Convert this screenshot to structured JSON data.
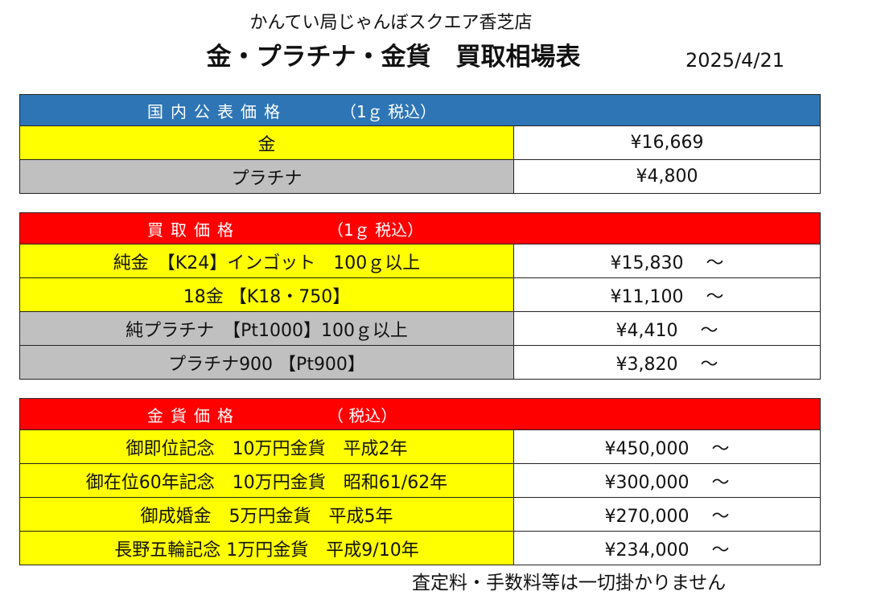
{
  "header": {
    "store_name": "かんてい局じゃんぼスクエア香芝店",
    "title": "金・プラチナ・金貨　買取相場表",
    "date": "2025/4/21"
  },
  "colors": {
    "section_blue": "#2e75b6",
    "section_red": "#ff0000",
    "gold_row": "#ffff00",
    "platinum_row": "#c0c0c0"
  },
  "public_price": {
    "label": "国内公表価格",
    "tax_note": "（1ｇ 税込）",
    "rows": [
      {
        "name": "金",
        "price": "¥16,669"
      },
      {
        "name": "プラチナ",
        "price": "¥4,800"
      }
    ]
  },
  "buy_price": {
    "label": "買取価格",
    "tax_note": "（1ｇ 税込）",
    "tilde": "～",
    "rows": [
      {
        "name": "純金　【K24】インゴット　100ｇ以上",
        "price": "¥15,830"
      },
      {
        "name": "18金 【K18・750】",
        "price": "¥11,100"
      },
      {
        "name": "純プラチナ　【Pt1000】100ｇ以上",
        "price": "¥4,410"
      },
      {
        "name": "プラチナ900 【Pt900】",
        "price": "¥3,820"
      }
    ]
  },
  "coin_price": {
    "label": "金貨価格",
    "tax_note": "（ 税込）",
    "tilde": "～",
    "rows": [
      {
        "name": "御即位記念　10万円金貨　平成2年",
        "price": "¥450,000"
      },
      {
        "name": "御在位60年記念　10万円金貨　昭和61/62年",
        "price": "¥300,000"
      },
      {
        "name": "御成婚金　5万円金貨　平成5年",
        "price": "¥270,000"
      },
      {
        "name": "長野五輪記念 1万円金貨　平成9/10年",
        "price": "¥234,000"
      }
    ]
  },
  "footer": {
    "note": "査定料・手数料等は一切掛かりません"
  }
}
